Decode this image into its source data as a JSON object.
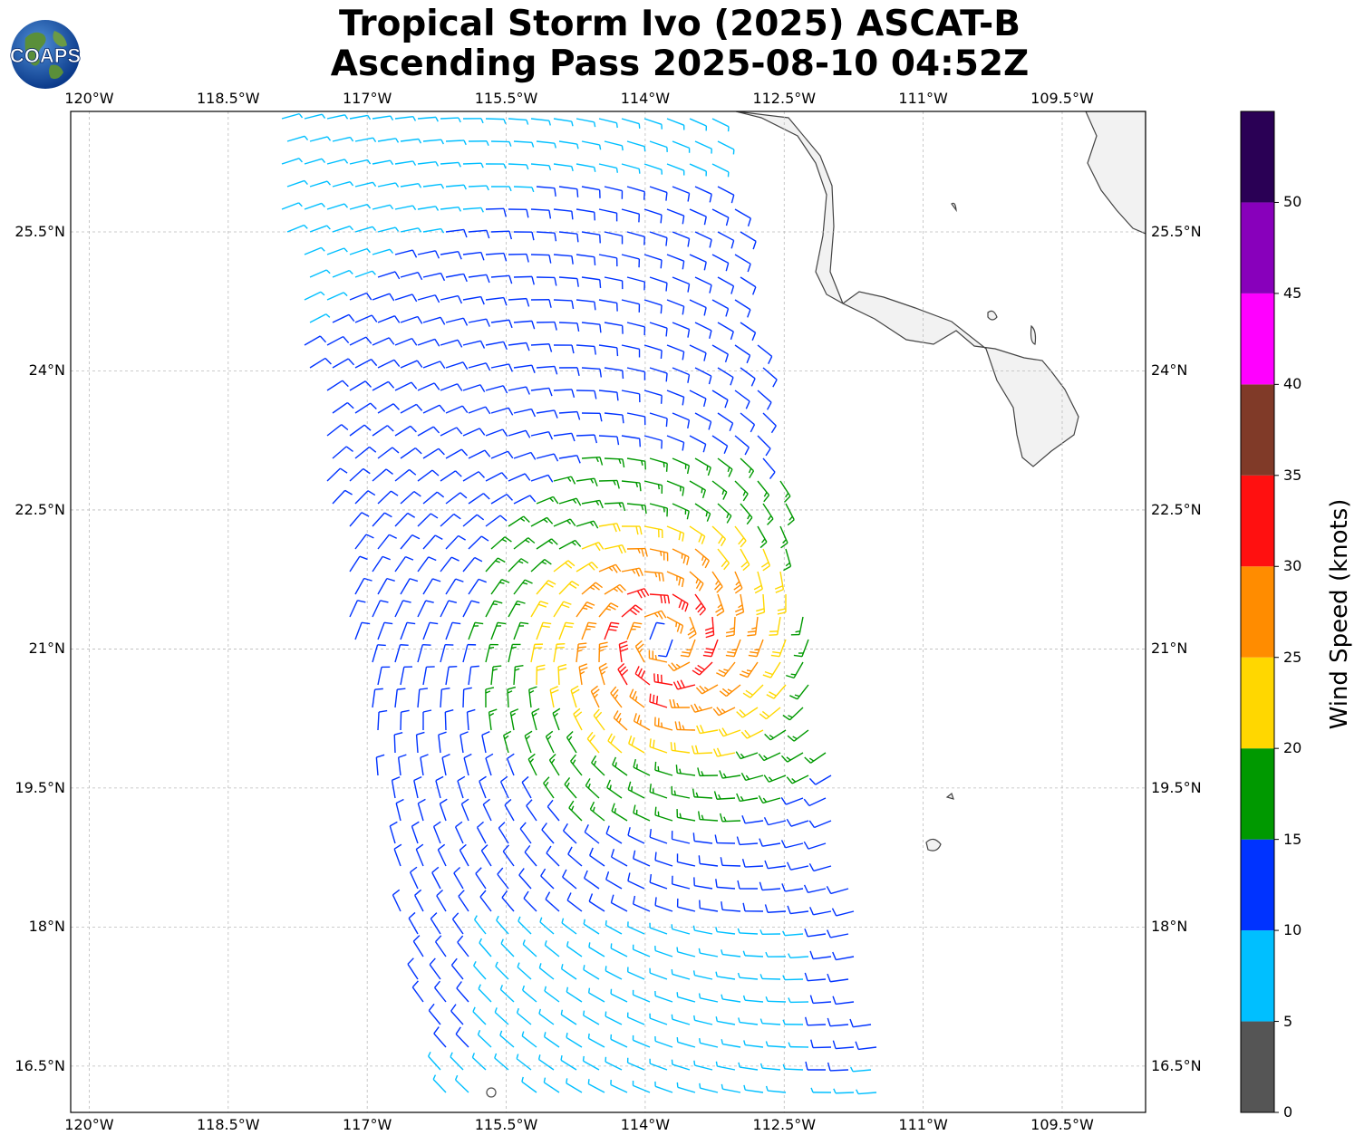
{
  "header": {
    "title_line1": "Tropical Storm Ivo (2025) ASCAT-B",
    "title_line2": "Ascending Pass 2025-08-10 04:52Z",
    "logo_text": "COAPS"
  },
  "map": {
    "lon_range": [
      -120.2,
      -108.6
    ],
    "lat_range": [
      16.0,
      26.8
    ],
    "lon_ticks": [
      -120,
      -118.5,
      -117,
      -115.5,
      -114,
      -112.5,
      -111,
      -109.5
    ],
    "lon_tick_labels": [
      "120°W",
      "118.5°W",
      "117°W",
      "115.5°W",
      "114°W",
      "112.5°W",
      "111°W",
      "109.5°W"
    ],
    "lat_ticks": [
      16.5,
      18,
      19.5,
      21,
      22.5,
      24,
      25.5
    ],
    "lat_tick_labels": [
      "16.5°N",
      "18°N",
      "19.5°N",
      "21°N",
      "22.5°N",
      "24°N",
      "25.5°N"
    ],
    "storm_center": {
      "lon": -113.8,
      "lat": 21.1
    },
    "gridlines": true,
    "land_color": "#f2f2f2",
    "coast_color": "#444444"
  },
  "colorbar": {
    "label": "Wind Speed (knots)",
    "bounds": [
      0,
      5,
      10,
      15,
      20,
      25,
      30,
      35,
      40,
      45,
      50,
      55
    ],
    "tick_labels": [
      "0",
      "5",
      "10",
      "15",
      "20",
      "25",
      "30",
      "35",
      "40",
      "45",
      "50"
    ],
    "colors": [
      "#555555",
      "#00bfff",
      "#0033ff",
      "#009900",
      "#ffd700",
      "#ff8c00",
      "#ff1010",
      "#803a28",
      "#ff00ff",
      "#8800bb",
      "#2a0055"
    ]
  }
}
